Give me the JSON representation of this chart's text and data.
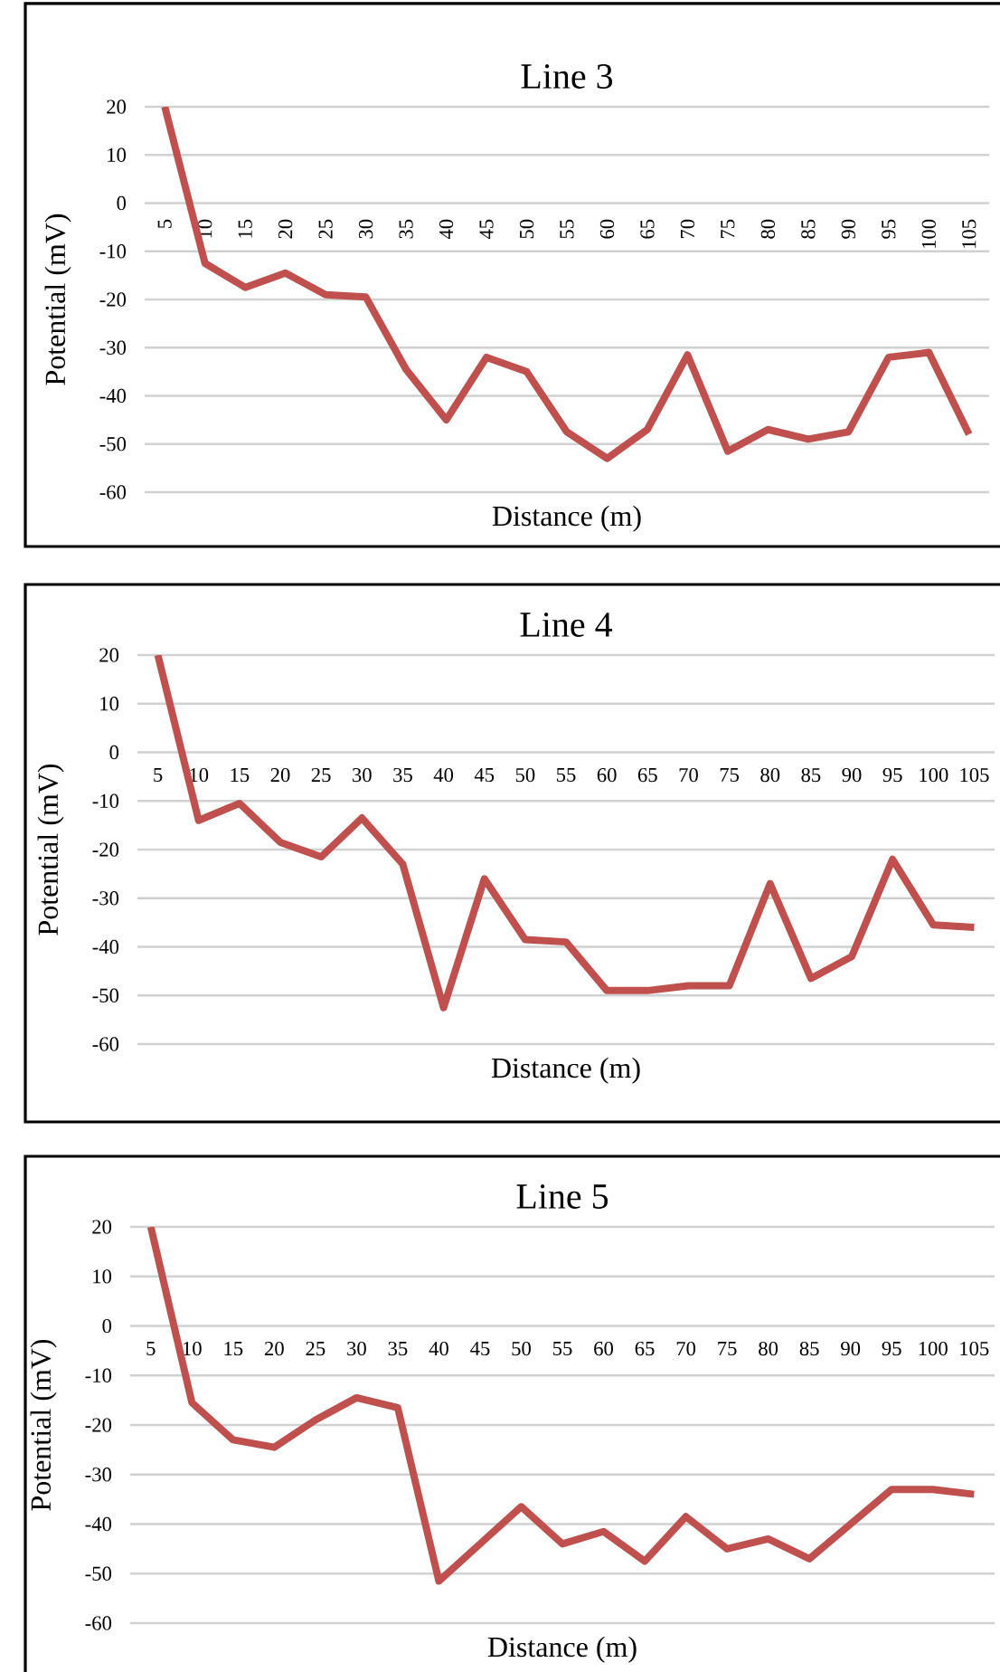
{
  "chart_data": [
    {
      "type": "line",
      "title": "Line 3",
      "xlabel": "Distance (m)",
      "ylabel": "Potential (mV)",
      "categories": [
        "5",
        "10",
        "15",
        "20",
        "25",
        "30",
        "35",
        "40",
        "45",
        "50",
        "55",
        "60",
        "65",
        "70",
        "75",
        "80",
        "85",
        "90",
        "95",
        "100",
        "105"
      ],
      "series": [
        {
          "color": "#c0504d",
          "values": [
            20,
            -12.5,
            -17.5,
            -14.5,
            -19,
            -19.5,
            -34.5,
            -45,
            -32,
            -35,
            -47.5,
            -53,
            -47,
            -31.5,
            -51.5,
            -47,
            -49,
            -47.5,
            -32,
            -31,
            -48
          ]
        }
      ],
      "ylim": [
        -60,
        20
      ],
      "yticks": [
        -60,
        -50,
        -40,
        -30,
        -20,
        -10,
        0,
        10,
        20
      ],
      "grid": "y"
    },
    {
      "type": "line",
      "title": "Line 4",
      "xlabel": "Distance (m)",
      "ylabel": "Potential (mV)",
      "categories": [
        "5",
        "10",
        "15",
        "20",
        "25",
        "30",
        "35",
        "40",
        "45",
        "50",
        "55",
        "60",
        "65",
        "70",
        "75",
        "80",
        "85",
        "90",
        "95",
        "100",
        "105"
      ],
      "series": [
        {
          "color": "#c0504d",
          "values": [
            20,
            -14,
            -10.5,
            -18.5,
            -21.5,
            -13.5,
            -23,
            -52.5,
            -26,
            -38.5,
            -39,
            -49,
            -49,
            -48,
            -48,
            -27,
            -46.5,
            -42,
            -22,
            -35.5,
            -36
          ]
        }
      ],
      "ylim": [
        -60,
        20
      ],
      "yticks": [
        -60,
        -50,
        -40,
        -30,
        -20,
        -10,
        0,
        10,
        20
      ],
      "grid": "y"
    },
    {
      "type": "line",
      "title": "Line 5",
      "xlabel": "Distance (m)",
      "ylabel": "Potential (mV)",
      "categories": [
        "5",
        "10",
        "15",
        "20",
        "25",
        "30",
        "35",
        "40",
        "45",
        "50",
        "55",
        "60",
        "65",
        "70",
        "75",
        "80",
        "85",
        "90",
        "95",
        "100",
        "105"
      ],
      "series": [
        {
          "color": "#c0504d",
          "values": [
            20,
            -15.5,
            -23,
            -24.5,
            -19,
            -14.5,
            -16.5,
            -51.5,
            -44,
            -36.5,
            -44,
            -41.5,
            -47.5,
            -38.5,
            -45,
            -43,
            -47,
            -40,
            -33,
            -33,
            -34
          ]
        }
      ],
      "ylim": [
        -60,
        20
      ],
      "yticks": [
        -60,
        -50,
        -40,
        -30,
        -20,
        -10,
        0,
        10,
        20
      ],
      "grid": "y"
    }
  ]
}
